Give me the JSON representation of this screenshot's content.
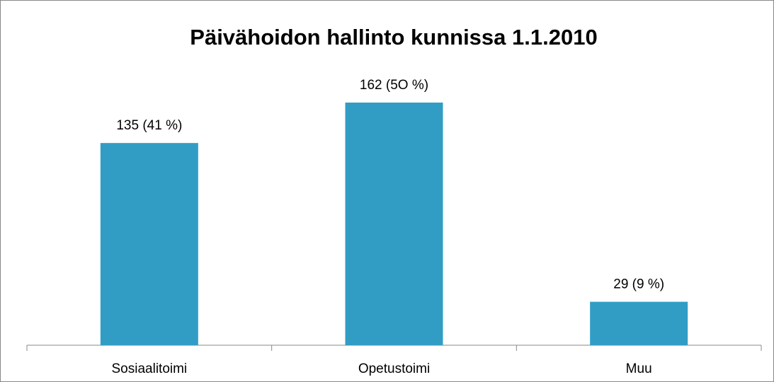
{
  "chart_data": {
    "type": "bar",
    "title": "Päivähoidon hallinto kunnissa 1.1.2010",
    "categories": [
      "Sosiaalitoimi",
      "Opetustoimi",
      "Muu"
    ],
    "values": [
      135,
      162,
      29
    ],
    "value_labels": [
      "135 (41 %)",
      "162 (5O %)",
      "29 (9 %)"
    ],
    "color": "#319dc5"
  }
}
